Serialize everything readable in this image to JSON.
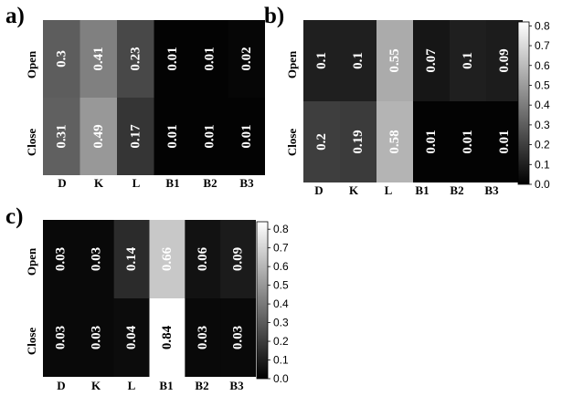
{
  "chart_data": [
    {
      "type": "heatmap",
      "panel": "a)",
      "rows": [
        "Open",
        "Close"
      ],
      "columns": [
        "D",
        "K",
        "L",
        "B1",
        "B2",
        "B3"
      ],
      "values": [
        [
          0.3,
          0.41,
          0.23,
          0.01,
          0.01,
          0.02
        ],
        [
          0.31,
          0.49,
          0.17,
          0.01,
          0.01,
          0.01
        ]
      ],
      "labels": [
        [
          "0.3",
          "0.41",
          "0.23",
          "0.01",
          "0.01",
          "0.02"
        ],
        [
          "0.31",
          "0.49",
          "0.17",
          "0.01",
          "0.01",
          "0.01"
        ]
      ],
      "colorbar": false,
      "vmin": 0.0,
      "vmax": 0.82
    },
    {
      "type": "heatmap",
      "panel": "b)",
      "rows": [
        "Open",
        "Close"
      ],
      "columns": [
        "D",
        "K",
        "L",
        "B1",
        "B2",
        "B3"
      ],
      "values": [
        [
          0.1,
          0.1,
          0.55,
          0.07,
          0.1,
          0.09
        ],
        [
          0.2,
          0.19,
          0.58,
          0.01,
          0.01,
          0.01
        ]
      ],
      "labels": [
        [
          "0.1",
          "0.1",
          "0.55",
          "0.07",
          "0.1",
          "0.09"
        ],
        [
          "0.2",
          "0.19",
          "0.58",
          "0.01",
          "0.01",
          "0.01"
        ]
      ],
      "colorbar": true,
      "colorbar_ticks": [
        "0.0",
        "0.1",
        "0.2",
        "0.3",
        "0.4",
        "0.5",
        "0.6",
        "0.7",
        "0.8"
      ],
      "vmin": 0.0,
      "vmax": 0.82,
      "colormap": "gray"
    },
    {
      "type": "heatmap",
      "panel": "c)",
      "rows": [
        "Open",
        "Close"
      ],
      "columns": [
        "D",
        "K",
        "L",
        "B1",
        "B2",
        "B3"
      ],
      "values": [
        [
          0.03,
          0.03,
          0.14,
          0.66,
          0.06,
          0.09
        ],
        [
          0.03,
          0.03,
          0.04,
          0.84,
          0.03,
          0.03
        ]
      ],
      "labels": [
        [
          "0.03",
          "0.03",
          "0.14",
          "0.66",
          "0.06",
          "0.09"
        ],
        [
          "0.03",
          "0.03",
          "0.04",
          "0.84",
          "0.03",
          "0.03"
        ]
      ],
      "colorbar": true,
      "colorbar_ticks": [
        "0.0",
        "0.1",
        "0.2",
        "0.3",
        "0.4",
        "0.5",
        "0.6",
        "0.7",
        "0.8"
      ],
      "vmin": 0.0,
      "vmax": 0.84,
      "colormap": "gray"
    }
  ]
}
